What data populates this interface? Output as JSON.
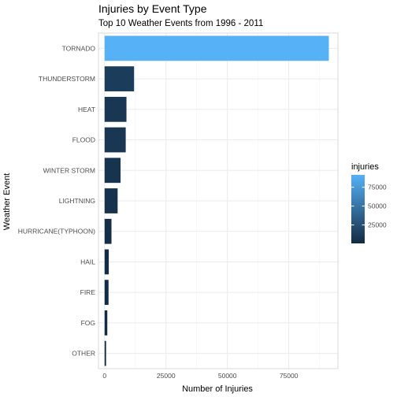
{
  "chart_data": {
    "type": "bar",
    "orientation": "horizontal",
    "title": "Injuries by Event Type",
    "subtitle": "Top 10 Weather Events from 1996 - 2011",
    "xlabel": "Number of Injuries",
    "ylabel": "Weather Event",
    "xlim": [
      -2500,
      95000
    ],
    "x_ticks": [
      0,
      25000,
      50000,
      75000
    ],
    "x_tick_labels": [
      "0",
      "25000",
      "50000",
      "75000"
    ],
    "categories": [
      "TORNADO",
      "THUNDERSTORM",
      "HEAT",
      "FLOOD",
      "WINTER STORM",
      "LIGHTNING",
      "HURRICANE(TYPHOON)",
      "HAIL",
      "FIRE",
      "FOG",
      "OTHER"
    ],
    "values": [
      91300,
      12000,
      8900,
      8600,
      6500,
      5300,
      2800,
      1700,
      1600,
      1100,
      600
    ],
    "grid": true,
    "legend": {
      "title": "injuries",
      "position": "right",
      "ticks": [
        25000,
        50000,
        75000
      ],
      "tick_labels": [
        "25000",
        "50000",
        "75000"
      ],
      "range": [
        600,
        91300
      ]
    },
    "colors": {
      "low": "#132B43",
      "high": "#56B1F7",
      "panel_border": "#D9D9D9",
      "grid": "#EBEBEB",
      "text": "#4D4D4D",
      "title": "#000000"
    }
  }
}
